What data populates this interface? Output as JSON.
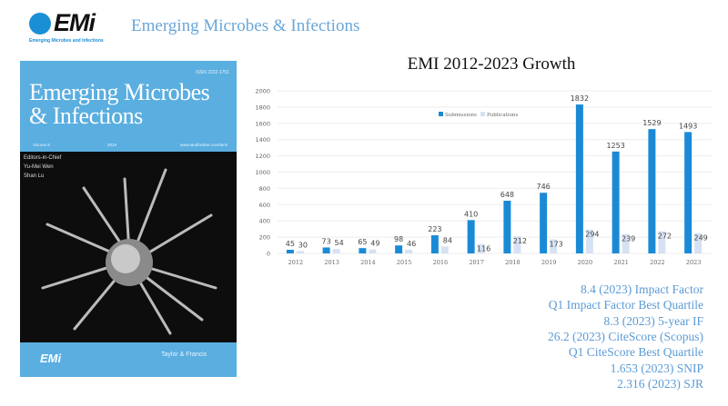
{
  "header": {
    "logo_text": "EMi",
    "logo_subtitle": "Emerging Microbes and Infections",
    "title": "Emerging Microbes & Infections"
  },
  "cover": {
    "issn": "ISSN 2222-1751",
    "title_line1": "Emerging Microbes",
    "title_line2": "& Infections",
    "volume": "Volume 8",
    "year": "2019",
    "url": "www.tandfonline.com/temi",
    "editors_label": "Editors-in-Chief",
    "editor1": "Yu-Mei Wen",
    "editor2": "Shan Lu",
    "bottom_logo": "EMi",
    "publisher": "Taylor & Francis",
    "colors": {
      "cover_blue": "#5aaee0",
      "image_bg": "#0d0d0d"
    }
  },
  "chart_data": {
    "type": "bar",
    "title": "EMI 2012-2023 Growth",
    "categories": [
      "2012",
      "2013",
      "2014",
      "2015",
      "2016",
      "2017",
      "2018",
      "2019",
      "2020",
      "2021",
      "2022",
      "2023"
    ],
    "series": [
      {
        "name": "Submissions",
        "values": [
          45,
          73,
          65,
          98,
          223,
          410,
          648,
          746,
          1832,
          1253,
          1529,
          1493
        ],
        "color": "#1b8ad6"
      },
      {
        "name": "Publications",
        "values": [
          30,
          54,
          49,
          46,
          84,
          116,
          212,
          173,
          294,
          239,
          272,
          249
        ],
        "color": "#d6e2f3"
      }
    ],
    "ylim": [
      0,
      2000
    ],
    "yticks": [
      0,
      200,
      400,
      600,
      800,
      1000,
      1200,
      1400,
      1600,
      1800,
      2000
    ],
    "grid": true,
    "legend": "top-center",
    "data_labels": true
  },
  "metrics": [
    "8.4 (2023) Impact Factor",
    "Q1 Impact Factor Best Quartile",
    "8.3 (2023) 5-year IF",
    "26.2 (2023) CiteScore (Scopus)",
    "Q1 CiteScore Best Quartile",
    "1.653 (2023) SNIP",
    "2.316 (2023) SJR"
  ]
}
